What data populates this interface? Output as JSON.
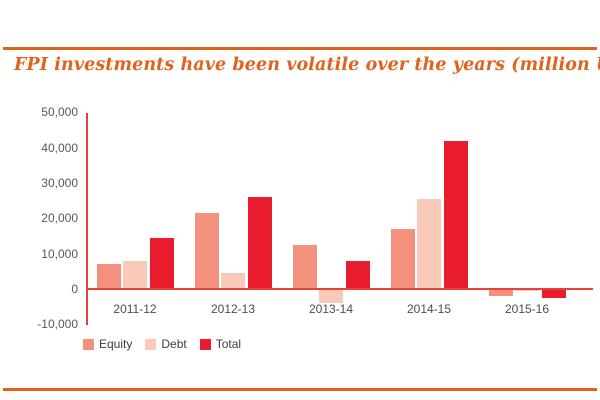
{
  "header": {
    "title": "FPI investments have been volatile over the years (million USD)"
  },
  "colors": {
    "accent_orange": "#E2621B",
    "equity": "#F4907E",
    "debt": "#F9CAB9",
    "total": "#E91C2E",
    "axis_line": "#E8413C",
    "tick_text": "#58585A",
    "category_text": "#4D4D4F",
    "legend_text": "#3D3D3F"
  },
  "chart_data": {
    "type": "bar",
    "title": "FPI investments have been volatile over the years (million USD)",
    "categories": [
      "2011-12",
      "2012-13",
      "2013-14",
      "2014-15",
      "2015-16"
    ],
    "series": [
      {
        "name": "Equity",
        "color_key": "equity",
        "values": [
          7000,
          21500,
          12500,
          17000,
          -2000
        ]
      },
      {
        "name": "Debt",
        "color_key": "debt",
        "values": [
          8000,
          4500,
          -4000,
          25500,
          -500
        ]
      },
      {
        "name": "Total",
        "color_key": "total",
        "values": [
          14500,
          26000,
          8000,
          42000,
          -2500
        ]
      }
    ],
    "ylabel": "",
    "xlabel": "",
    "ylim": [
      -10000,
      50000
    ],
    "ytick_step": 10000,
    "ytick_labels": [
      "50,000",
      "40,000",
      "30,000",
      "20,000",
      "10,000",
      "0",
      "-10,000"
    ],
    "grid": false,
    "legend_position": "bottom-left"
  },
  "legend": {
    "items": [
      {
        "label": "Equity"
      },
      {
        "label": "Debt"
      },
      {
        "label": "Total"
      }
    ]
  }
}
